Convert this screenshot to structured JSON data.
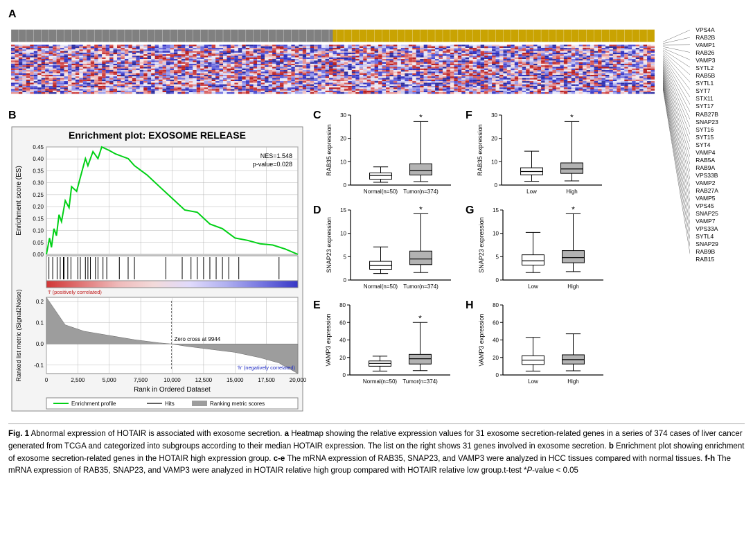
{
  "panel_labels": {
    "a": "A",
    "b": "B",
    "c": "C",
    "d": "D",
    "e": "E",
    "f": "F",
    "g": "G",
    "h": "H"
  },
  "gene_list": [
    "VPS4A",
    "RAB2B",
    "VAMP1",
    "RAB26",
    "VAMP3",
    "SYTL2",
    "RAB5B",
    "SYTL1",
    "SYT7",
    "STX11",
    "SYT17",
    "RAB27B",
    "SNAP23",
    "SYT16",
    "SYT15",
    "SYT4",
    "VAMP4",
    "RAB5A",
    "RAB9A",
    "VPS33B",
    "VAMP2",
    "RAB27A",
    "VAMP5",
    "VPS45",
    "SNAP25",
    "VAMP7",
    "VPS33A",
    "SYTL4",
    "SNAP29",
    "RAB9B",
    "RAB15"
  ],
  "heatmap": {
    "group1_color": "#808080",
    "group2_color": "#c9a302",
    "palette": [
      "#2d2d9e",
      "#3232c1",
      "#4b4bd0",
      "#6e6ee0",
      "#9b9bea",
      "#c9c9f1",
      "#e6e6f8",
      "#f6e6e6",
      "#efc1c1",
      "#e69191",
      "#d96161",
      "#cb3b3b",
      "#b82121"
    ],
    "n_cols": 170,
    "n_rows": 31,
    "cell_w": 5.5,
    "row_h": 2.3
  },
  "gsea": {
    "title": "Enrichment plot: EXOSOME RELEASE",
    "nes": "NES=1.548",
    "pvalue": "p-value=0.028",
    "ylabel_top": "Enrichment score (ES)",
    "ylabel_bot": "Ranked list metric (Signal2Noise)",
    "xlabel": "Rank in Ordered Dataset",
    "legend": {
      "a": "Enrichment profile",
      "b": "Hits",
      "c": "Ranking metric scores"
    },
    "pos_label": "'l' (positively correlated)",
    "neg_label": "'h' (negatively correlated)",
    "zero_label": "Zero cross at 9944",
    "x_ticks": [
      "0",
      "2,500",
      "5,000",
      "7,500",
      "10,000",
      "12,500",
      "15,000",
      "17,500",
      "20,000"
    ],
    "top_yticks": [
      "0.00",
      "0.05",
      "0.10",
      "0.15",
      "0.20",
      "0.25",
      "0.30",
      "0.35",
      "0.40",
      "0.45"
    ],
    "bot_yticks": [
      "-0.1",
      "0.0",
      "0.1",
      "0.2"
    ],
    "line_color": "#00d015",
    "grid_color": "#b5b5b5",
    "hit_positions": [
      200,
      500,
      850,
      1100,
      1350,
      1400,
      1700,
      1950,
      2500,
      2700,
      3100,
      3300,
      3500,
      3900,
      4100,
      4500,
      4800,
      5800,
      6500,
      7000,
      9500,
      10800,
      11500,
      12000,
      12500,
      13000,
      13500,
      14000,
      14500,
      15300,
      18500
    ],
    "es_curve": [
      [
        0,
        0.0
      ],
      [
        250,
        0.07
      ],
      [
        400,
        0.03
      ],
      [
        600,
        0.11
      ],
      [
        800,
        0.08
      ],
      [
        1000,
        0.17
      ],
      [
        1200,
        0.14
      ],
      [
        1500,
        0.23
      ],
      [
        1800,
        0.2
      ],
      [
        2000,
        0.29
      ],
      [
        2400,
        0.27
      ],
      [
        2800,
        0.35
      ],
      [
        3100,
        0.41
      ],
      [
        3300,
        0.38
      ],
      [
        3700,
        0.44
      ],
      [
        4100,
        0.41
      ],
      [
        4400,
        0.46
      ],
      [
        5000,
        0.445
      ],
      [
        5500,
        0.43
      ],
      [
        6000,
        0.42
      ],
      [
        6500,
        0.41
      ],
      [
        7000,
        0.38
      ],
      [
        7500,
        0.36
      ],
      [
        8000,
        0.34
      ],
      [
        9000,
        0.29
      ],
      [
        10000,
        0.24
      ],
      [
        11000,
        0.19
      ],
      [
        12000,
        0.18
      ],
      [
        13000,
        0.13
      ],
      [
        14000,
        0.11
      ],
      [
        15000,
        0.07
      ],
      [
        16000,
        0.06
      ],
      [
        17000,
        0.045
      ],
      [
        18000,
        0.04
      ],
      [
        19000,
        0.023
      ],
      [
        20000,
        0.0
      ]
    ],
    "metric_curve": [
      [
        0,
        0.22
      ],
      [
        1500,
        0.09
      ],
      [
        3000,
        0.06
      ],
      [
        5000,
        0.04
      ],
      [
        7000,
        0.02
      ],
      [
        9000,
        0.005
      ],
      [
        9944,
        0
      ],
      [
        11000,
        -0.01
      ],
      [
        13000,
        -0.025
      ],
      [
        15000,
        -0.04
      ],
      [
        17000,
        -0.065
      ],
      [
        18500,
        -0.09
      ],
      [
        20000,
        -0.14
      ]
    ],
    "gradient_stops": [
      "#d13636",
      "#e07878",
      "#efbaba",
      "#f3dada",
      "#e0dafc",
      "#b0b0f0",
      "#7575e0",
      "#3838c6"
    ]
  },
  "boxplots": {
    "C": {
      "ylabel": "RAB35 expression",
      "ymax": 30,
      "yticks": [
        0,
        10,
        20,
        30
      ],
      "xlabels": [
        "Normal(n=50)",
        "Tumor(n=374)"
      ],
      "boxes": [
        {
          "q1": 2.5,
          "med": 4.1,
          "q3": 5.2,
          "lo": 1.2,
          "hi": 7.8,
          "fill": "#ffffff"
        },
        {
          "q1": 4.3,
          "med": 6.2,
          "q3": 9.1,
          "lo": 1.5,
          "hi": 27.2,
          "fill": "#b3b3b3"
        }
      ],
      "sig": "*"
    },
    "D": {
      "ylabel": "SNAP23 expression",
      "ymax": 15,
      "yticks": [
        0,
        5,
        10,
        15
      ],
      "xlabels": [
        "Normal(n=50)",
        "Tumor(n=374)"
      ],
      "boxes": [
        {
          "q1": 2.3,
          "med": 3.1,
          "q3": 4.0,
          "lo": 1.4,
          "hi": 7.1,
          "fill": "#ffffff"
        },
        {
          "q1": 3.3,
          "med": 4.5,
          "q3": 6.2,
          "lo": 1.6,
          "hi": 14.2,
          "fill": "#b3b3b3"
        }
      ],
      "sig": "*"
    },
    "E": {
      "ylabel": "VAMP3 expression",
      "ymax": 80,
      "yticks": [
        0,
        20,
        40,
        60,
        80
      ],
      "xlabels": [
        "Normal(n=50)",
        "Tumor(n=374)"
      ],
      "boxes": [
        {
          "q1": 10.0,
          "med": 13.2,
          "q3": 16.0,
          "lo": 4.5,
          "hi": 21.5,
          "fill": "#ffffff"
        },
        {
          "q1": 12.5,
          "med": 18.5,
          "q3": 23.5,
          "lo": 5.0,
          "hi": 60.0,
          "fill": "#b3b3b3"
        }
      ],
      "sig": "*"
    },
    "F": {
      "ylabel": "RAB35 expression",
      "ymax": 30,
      "yticks": [
        0,
        10,
        20,
        30
      ],
      "xlabels": [
        "Low",
        "High"
      ],
      "boxes": [
        {
          "q1": 4.4,
          "med": 5.8,
          "q3": 7.4,
          "lo": 1.6,
          "hi": 14.5,
          "fill": "#ffffff"
        },
        {
          "q1": 5.0,
          "med": 6.9,
          "q3": 9.5,
          "lo": 1.8,
          "hi": 27.2,
          "fill": "#b3b3b3"
        }
      ],
      "sig": "*"
    },
    "G": {
      "ylabel": "SNAP23 expression",
      "ymax": 15,
      "yticks": [
        0,
        5,
        10,
        15
      ],
      "xlabels": [
        "Low",
        "High"
      ],
      "boxes": [
        {
          "q1": 3.2,
          "med": 4.1,
          "q3": 5.4,
          "lo": 1.6,
          "hi": 10.2,
          "fill": "#ffffff"
        },
        {
          "q1": 3.7,
          "med": 4.8,
          "q3": 6.3,
          "lo": 1.8,
          "hi": 14.2,
          "fill": "#b3b3b3"
        }
      ],
      "sig": "*"
    },
    "H": {
      "ylabel": "VAMP3 expression",
      "ymax": 80,
      "yticks": [
        0,
        20,
        40,
        60,
        80
      ],
      "xlabels": [
        "Low",
        "High"
      ],
      "boxes": [
        {
          "q1": 12.0,
          "med": 17.0,
          "q3": 22.0,
          "lo": 4.5,
          "hi": 43.0,
          "fill": "#ffffff"
        },
        {
          "q1": 12.5,
          "med": 17.5,
          "q3": 23.0,
          "lo": 4.8,
          "hi": 47.0,
          "fill": "#b3b3b3"
        }
      ],
      "sig": ""
    }
  },
  "caption": {
    "label": "Fig. 1",
    "text": " Abnormal expression of HOTAIR is associated with exosome secretion. ",
    "a": "a",
    "a_text": " Heatmap showing the relative expression values for 31 exosome secretion-related genes in a series of 374 cases of liver cancer generated from TCGA and categorized into subgroups according to their median HOTAIR expression. The list on the right shows 31 genes involved in exosome secretion. ",
    "b": "b",
    "b_text": " Enrichment plot showing enrichment of exosome secretion-related genes in the HOTAIR high expression group. ",
    "c": "c-e",
    "c_text": " The mRNA expression of RAB35, SNAP23, and VAMP3 were analyzed in HCC tissues compared with normal tissues. ",
    "f": "f-h",
    "f_text": " The mRNA expression of RAB35, SNAP23, and VAMP3 were analyzed in HOTAIR relative high group compared with HOTAIR relative low group.t-test *",
    "pval": "P",
    "pval_text": "-value < 0.05"
  }
}
